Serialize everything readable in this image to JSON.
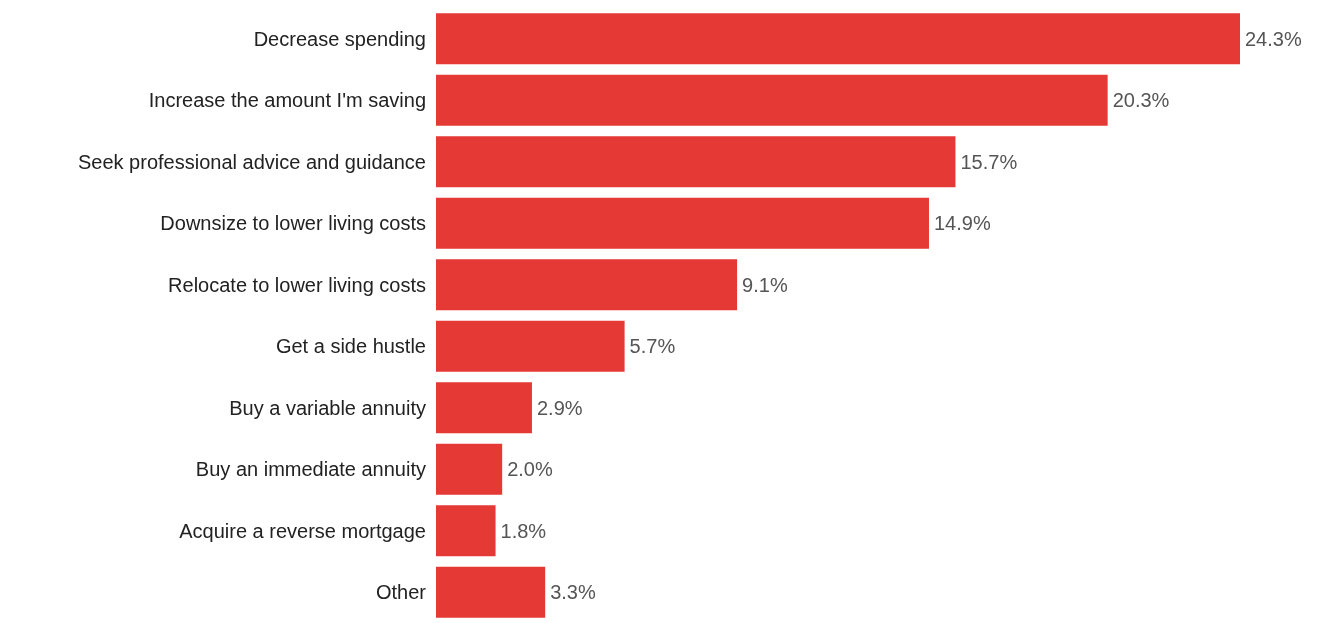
{
  "chart_data": {
    "type": "bar",
    "orientation": "horizontal",
    "categories": [
      "Decrease spending",
      "Increase the amount I'm saving",
      "Seek professional advice and guidance",
      "Downsize to lower living costs",
      "Relocate to lower living costs",
      "Get a side hustle",
      "Buy a variable annuity",
      "Buy an immediate annuity",
      "Acquire a reverse mortgage",
      "Other"
    ],
    "values": [
      24.3,
      20.3,
      15.7,
      14.9,
      9.1,
      5.7,
      2.9,
      2.0,
      1.8,
      3.3
    ],
    "value_labels": [
      "24.3%",
      "20.3%",
      "15.7%",
      "14.9%",
      "9.1%",
      "5.7%",
      "2.9%",
      "2.0%",
      "1.8%",
      "3.3%"
    ],
    "color": "#e53935"
  }
}
